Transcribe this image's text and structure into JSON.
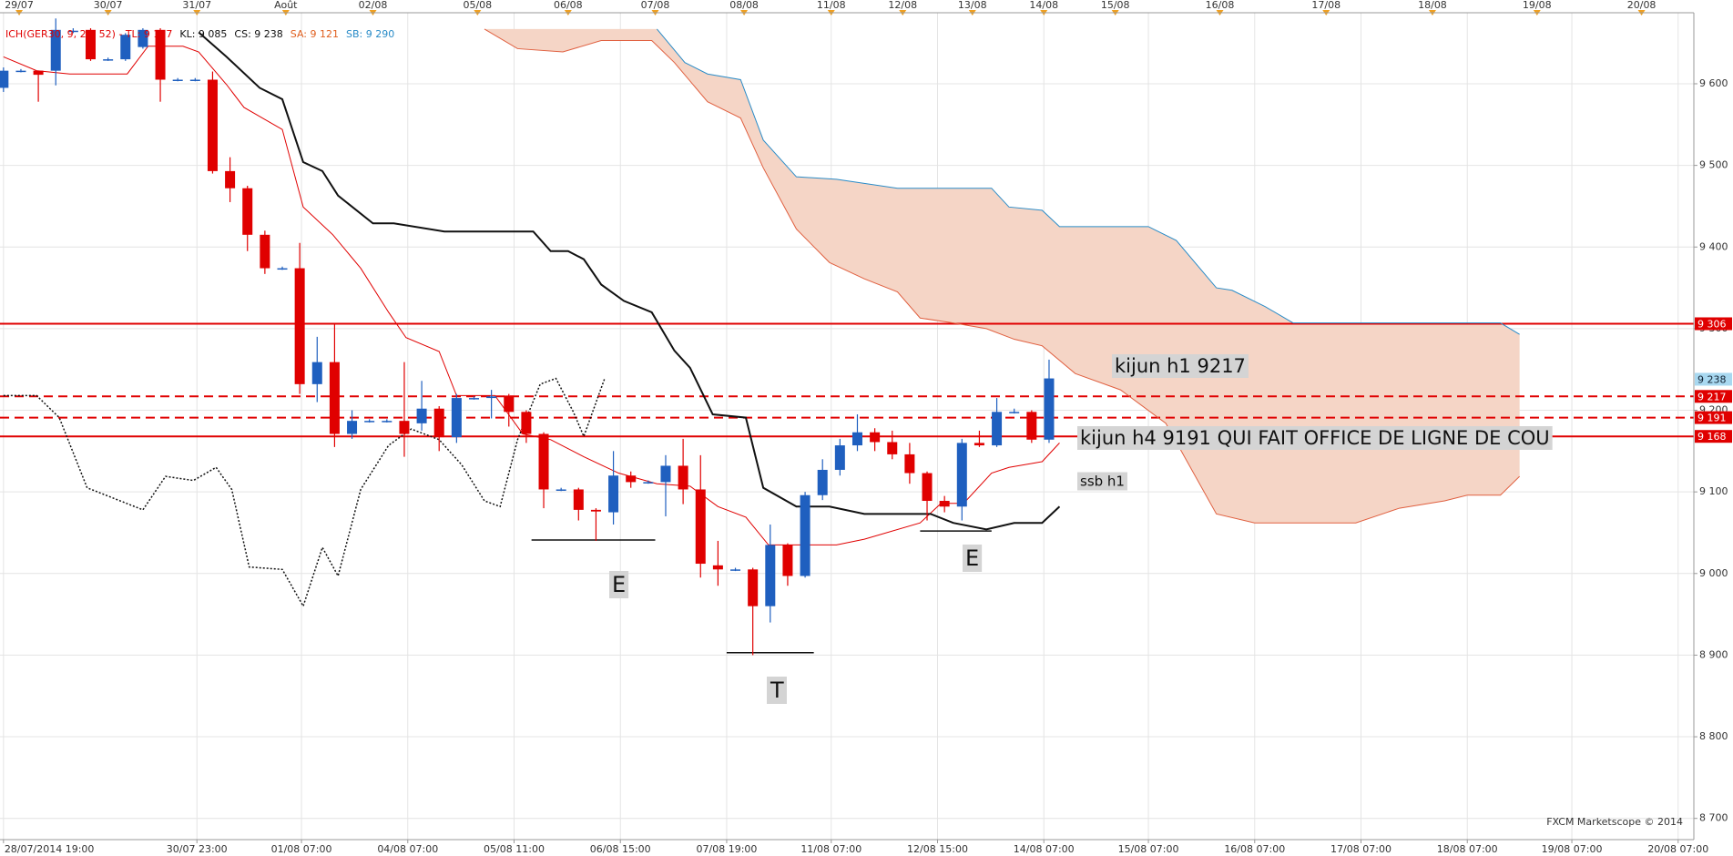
{
  "chart_data": {
    "type": "candlestick",
    "header": [
      {
        "text": "ICH(GER30, 9, 26, 52) - TL: 9 157",
        "color": "#e00000"
      },
      {
        "text": "KL: 9 085",
        "color": "#111111"
      },
      {
        "text": "CS: 9 238",
        "color": "#111111"
      },
      {
        "text": "SA: 9 121",
        "color": "#e06020"
      },
      {
        "text": "SB: 9 290",
        "color": "#2a8cc8"
      }
    ],
    "ylim": [
      8674,
      9687
    ],
    "yticks": [
      {
        "value": 8700,
        "label": "8 700"
      },
      {
        "value": 8800,
        "label": "8 800"
      },
      {
        "value": 8900,
        "label": "8 900"
      },
      {
        "value": 9000,
        "label": "9 000"
      },
      {
        "value": 9100,
        "label": "9 100"
      },
      {
        "value": 9200,
        "label": "9 200"
      },
      {
        "value": 9300,
        "label": "9 300"
      },
      {
        "value": 9400,
        "label": "9 400"
      },
      {
        "value": 9500,
        "label": "9 500"
      },
      {
        "value": 9600,
        "label": "9 600"
      }
    ],
    "xlim": [
      -0.2,
      97
    ],
    "xticks": [
      {
        "value": 0,
        "label": "28/07/2014 19:00"
      },
      {
        "value": 11.1,
        "label": "30/07 23:00"
      },
      {
        "value": 17.1,
        "label": "01/08 07:00"
      },
      {
        "value": 23.2,
        "label": "04/08 07:00"
      },
      {
        "value": 29.3,
        "label": "05/08 11:00"
      },
      {
        "value": 35.4,
        "label": "06/08 15:00"
      },
      {
        "value": 41.5,
        "label": "07/08 19:00"
      },
      {
        "value": 47.5,
        "label": "11/08 07:00"
      },
      {
        "value": 53.6,
        "label": "12/08 15:00"
      },
      {
        "value": 59.7,
        "label": "14/08 07:00"
      },
      {
        "value": 65.7,
        "label": "15/08 07:00"
      },
      {
        "value": 71.8,
        "label": "16/08 07:00"
      },
      {
        "value": 77.9,
        "label": "17/08 07:00"
      },
      {
        "value": 84.0,
        "label": "18/08 07:00"
      },
      {
        "value": 90.0,
        "label": "19/08 07:00"
      },
      {
        "value": 96.1,
        "label": "20/08 07:00"
      }
    ],
    "xticks_top": [
      {
        "value": 0.9,
        "label": "29/07"
      },
      {
        "value": 6.0,
        "label": "30/07"
      },
      {
        "value": 11.1,
        "label": "31/07"
      },
      {
        "value": 16.2,
        "label": "Août"
      },
      {
        "value": 21.2,
        "label": "02/08"
      },
      {
        "value": 27.2,
        "label": "05/08"
      },
      {
        "value": 32.4,
        "label": "06/08"
      },
      {
        "value": 37.4,
        "label": "07/08"
      },
      {
        "value": 42.5,
        "label": "08/08"
      },
      {
        "value": 47.5,
        "label": "11/08"
      },
      {
        "value": 51.6,
        "label": "12/08"
      },
      {
        "value": 55.6,
        "label": "13/08"
      },
      {
        "value": 59.7,
        "label": "14/08"
      },
      {
        "value": 63.8,
        "label": "15/08"
      },
      {
        "value": 69.8,
        "label": "16/08"
      },
      {
        "value": 75.9,
        "label": "17/08"
      },
      {
        "value": 82.0,
        "label": "18/08"
      },
      {
        "value": 88.0,
        "label": "19/08"
      },
      {
        "value": 94.0,
        "label": "20/08"
      }
    ],
    "grid": true,
    "up_color": "#1f5fbf",
    "down_color": "#e00000",
    "candles": {
      "open": [
        9595,
        9616,
        9616,
        9616,
        9665,
        9666,
        9630,
        9630,
        9645,
        9666,
        9605,
        9605,
        9605,
        9493,
        9472,
        9415,
        9374,
        9374,
        9232,
        9259,
        9171,
        9187,
        9187,
        9187,
        9184,
        9202,
        9167,
        9215,
        9215,
        9218,
        9198,
        9171,
        9103,
        9103,
        9078,
        9075,
        9120,
        9112,
        9112,
        9132,
        9103,
        9010,
        9005,
        9005,
        8960,
        9035,
        8997,
        9096,
        9127,
        9157,
        9173,
        9161,
        9146,
        9123,
        9089,
        9082,
        9160,
        9157,
        9198,
        9198,
        9164
      ],
      "high": [
        9620,
        9618,
        9616,
        9680,
        9668,
        9668,
        9632,
        9662,
        9668,
        9668,
        9607,
        9607,
        9615,
        9510,
        9475,
        9420,
        9376,
        9405,
        9290,
        9305,
        9200,
        9189,
        9189,
        9259,
        9236,
        9205,
        9220,
        9217,
        9225,
        9220,
        9200,
        9173,
        9105,
        9105,
        9080,
        9150,
        9125,
        9114,
        9145,
        9165,
        9145,
        9040,
        9007,
        9007,
        9060,
        9037,
        9100,
        9140,
        9165,
        9195,
        9178,
        9175,
        9160,
        9125,
        9095,
        9165,
        9175,
        9215,
        9202,
        9200,
        9262
      ],
      "low": [
        9590,
        9614,
        9578,
        9598,
        9662,
        9628,
        9628,
        9628,
        9643,
        9578,
        9603,
        9603,
        9490,
        9455,
        9395,
        9367,
        9372,
        9220,
        9210,
        9155,
        9165,
        9185,
        9185,
        9143,
        9175,
        9150,
        9160,
        9213,
        9190,
        9180,
        9160,
        9080,
        9101,
        9065,
        9040,
        9060,
        9105,
        9110,
        9070,
        9085,
        8995,
        8985,
        9003,
        8900,
        8940,
        8985,
        8995,
        9090,
        9120,
        9150,
        9150,
        9140,
        9110,
        9065,
        9075,
        9065,
        9155,
        9155,
        9196,
        9160,
        9160
      ],
      "close": [
        9616,
        9616,
        9611,
        9666,
        9665,
        9630,
        9630,
        9660,
        9666,
        9605,
        9605,
        9605,
        9493,
        9472,
        9415,
        9374,
        9374,
        9232,
        9259,
        9171,
        9187,
        9187,
        9187,
        9171,
        9202,
        9167,
        9215,
        9215,
        9217,
        9198,
        9171,
        9103,
        9103,
        9078,
        9076,
        9120,
        9112,
        9112,
        9132,
        9103,
        9012,
        9005,
        9005,
        8960,
        9035,
        8997,
        9096,
        9127,
        9157,
        9173,
        9161,
        9146,
        9123,
        9089,
        9082,
        9160,
        9157,
        9198,
        9198,
        9164,
        9239
      ]
    },
    "lines": [
      {
        "color": "#e00000",
        "width": 1,
        "dash": "none",
        "x": [
          0,
          1.9,
          3.8,
          7.1,
          8.3,
          10.3,
          11.2,
          12.8,
          13.8,
          16.0,
          17.2,
          18.9,
          20.5,
          22.1,
          23.1,
          25.0,
          26.0,
          28.2,
          29.8,
          31.4,
          33.3,
          35.3,
          37.5,
          39.4,
          41.0,
          42.6,
          43.9,
          46.5,
          47.8,
          49.4,
          52.6,
          53.8,
          55.1,
          56.7,
          57.7,
          59.6,
          60.6
        ],
        "values": [
          9633,
          9616,
          9612,
          9612,
          9646,
          9646,
          9639,
          9599,
          9571,
          9544,
          9449,
          9415,
          9374,
          9320,
          9289,
          9272,
          9218,
          9218,
          9171,
          9164,
          9143,
          9123,
          9110,
          9107,
          9082,
          9069,
          9035,
          9035,
          9035,
          9042,
          9062,
          9086,
          9086,
          9123,
          9130,
          9137,
          9160
        ]
      },
      {
        "color": "#111111",
        "width": 2,
        "dash": "none",
        "x": [
          11.2,
          12.8,
          14.7,
          16.0,
          17.2,
          18.3,
          19.2,
          21.2,
          22.4,
          25.3,
          30.4,
          31.4,
          32.4,
          33.3,
          34.3,
          35.6,
          37.2,
          38.5,
          39.4,
          40.7,
          42.6,
          43.6,
          45.5,
          47.4,
          49.4,
          53.2,
          54.5,
          56.4,
          58.0,
          59.6,
          60.6
        ],
        "values": [
          9663,
          9633,
          9595,
          9581,
          9504,
          9493,
          9463,
          9429,
          9429,
          9419,
          9419,
          9395,
          9395,
          9385,
          9354,
          9334,
          9320,
          9273,
          9252,
          9195,
          9191,
          9105,
          9082,
          9082,
          9073,
          9073,
          9062,
          9054,
          9062,
          9062,
          9082
        ]
      },
      {
        "color": "#111111",
        "width": 1.5,
        "dash": "2 2",
        "x": [
          0,
          1.9,
          3.2,
          4.8,
          6.7,
          8.0,
          9.3,
          10.9,
          12.2,
          13.1,
          14.1,
          16.0,
          17.2,
          18.3,
          19.2,
          20.5,
          22.1,
          23.4,
          25.0,
          26.3,
          27.6,
          28.5,
          29.5,
          30.8,
          31.7,
          32.7,
          33.3,
          34.5
        ],
        "values": [
          9218,
          9218,
          9191,
          9105,
          9089,
          9078,
          9119,
          9114,
          9130,
          9103,
          9008,
          9005,
          8960,
          9032,
          8997,
          9103,
          9157,
          9177,
          9164,
          9133,
          9089,
          9082,
          9164,
          9232,
          9239,
          9198,
          9168,
          9239
        ]
      },
      {
        "color": "#e06040",
        "width": 1,
        "dash": "none",
        "x": [
          27.6,
          29.5,
          32.1,
          34.3,
          37.2,
          38.5,
          40.4,
          42.3,
          43.6,
          45.5,
          47.4,
          49.4,
          51.3,
          52.6,
          54.5,
          56.4,
          58.0,
          59.6,
          61.5,
          64.1,
          66.7,
          69.6,
          71.8,
          77.6,
          80.1,
          82.7,
          84.0,
          85.9,
          87.0
        ],
        "values": [
          9667,
          9643,
          9639,
          9653,
          9653,
          9626,
          9578,
          9558,
          9497,
          9422,
          9381,
          9361,
          9345,
          9313,
          9307,
          9300,
          9287,
          9279,
          9245,
          9225,
          9184,
          9073,
          9062,
          9062,
          9080,
          9089,
          9096,
          9096,
          9119
        ]
      },
      {
        "color": "#2a8cc8",
        "width": 1,
        "dash": "none",
        "x": [
          37.5,
          39.1,
          40.4,
          42.3,
          43.6,
          45.5,
          47.8,
          51.3,
          53.5,
          56.7,
          57.7,
          59.6,
          60.6,
          65.7,
          67.3,
          69.6,
          70.5,
          72.4,
          74.0,
          85.9,
          87.0
        ],
        "values": [
          9667,
          9626,
          9612,
          9605,
          9531,
          9486,
          9483,
          9472,
          9472,
          9472,
          9449,
          9445,
          9425,
          9425,
          9408,
          9350,
          9347,
          9327,
          9307,
          9307,
          9293
        ]
      }
    ],
    "cloud_color": "#f5d5c6",
    "hlines": [
      {
        "value": 9306,
        "dash": "none"
      },
      {
        "value": 9217,
        "dash": "10 6"
      },
      {
        "value": 9191,
        "dash": "10 6"
      },
      {
        "value": 9168,
        "dash": "none"
      }
    ],
    "hline_color": "#e00000",
    "levels": [
      {
        "x": [
          30.3,
          37.4
        ],
        "value": 9041
      },
      {
        "x": [
          41.5,
          46.5
        ],
        "value": 8903
      },
      {
        "x": [
          52.6,
          56.7
        ],
        "value": 9052
      }
    ],
    "price_tags": [
      {
        "value": 9306,
        "label": "9 306",
        "color": "#e00000"
      },
      {
        "value": 9238,
        "label": "9 238",
        "color": "#a8d8f0"
      },
      {
        "value": 9217,
        "label": "9 217",
        "color": "#e00000"
      },
      {
        "value": 9191,
        "label": "9 191",
        "color": "#e00000"
      },
      {
        "value": 9168,
        "label": "9 168",
        "color": "#e00000"
      }
    ],
    "annotations": [
      "kijun h1 9217",
      "kijun h4 9191 QUI FAIT OFFICE DE LIGNE DE COU",
      "ssb h1",
      "E",
      "E",
      "T"
    ],
    "credit": "FXCM Marketscope © 2014"
  }
}
